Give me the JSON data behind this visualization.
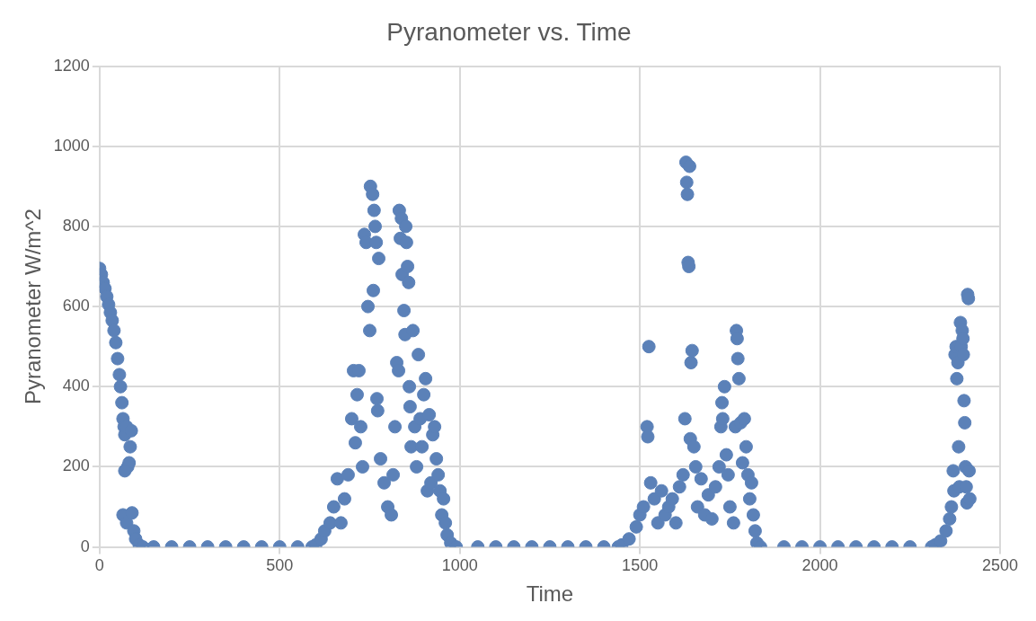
{
  "chart_data": {
    "type": "scatter",
    "title": "Pyranometer vs. Time",
    "xlabel": "Time",
    "ylabel": "Pyranometer W/m^2",
    "x": [
      0,
      5,
      10,
      15,
      20,
      25,
      30,
      35,
      40,
      45,
      50,
      55,
      58,
      62,
      65,
      68,
      70,
      75,
      78,
      82,
      85,
      88,
      70,
      65,
      75,
      90,
      95,
      100,
      110,
      120,
      150,
      200,
      250,
      300,
      350,
      400,
      450,
      500,
      550,
      590,
      600,
      615,
      625,
      640,
      650,
      660,
      670,
      680,
      690,
      700,
      705,
      710,
      715,
      720,
      725,
      730,
      735,
      740,
      745,
      750,
      752,
      758,
      760,
      762,
      765,
      768,
      770,
      772,
      775,
      780,
      790,
      800,
      810,
      815,
      820,
      825,
      830,
      832,
      835,
      838,
      840,
      845,
      848,
      850,
      852,
      855,
      858,
      860,
      862,
      865,
      870,
      875,
      880,
      885,
      890,
      895,
      900,
      905,
      910,
      915,
      920,
      925,
      930,
      935,
      940,
      945,
      950,
      955,
      960,
      965,
      975,
      990,
      1050,
      1100,
      1150,
      1200,
      1250,
      1300,
      1350,
      1400,
      1440,
      1450,
      1470,
      1490,
      1500,
      1510,
      1520,
      1522,
      1525,
      1530,
      1540,
      1550,
      1560,
      1570,
      1580,
      1590,
      1600,
      1610,
      1620,
      1625,
      1628,
      1630,
      1632,
      1634,
      1636,
      1638,
      1640,
      1642,
      1645,
      1650,
      1655,
      1660,
      1670,
      1680,
      1690,
      1700,
      1710,
      1720,
      1725,
      1728,
      1730,
      1735,
      1740,
      1745,
      1750,
      1760,
      1765,
      1768,
      1770,
      1772,
      1775,
      1780,
      1785,
      1790,
      1795,
      1800,
      1805,
      1810,
      1815,
      1820,
      1825,
      1835,
      1900,
      1950,
      2000,
      2050,
      2100,
      2150,
      2200,
      2250,
      2310,
      2320,
      2335,
      2350,
      2360,
      2365,
      2370,
      2372,
      2375,
      2378,
      2380,
      2383,
      2385,
      2387,
      2390,
      2392,
      2395,
      2397,
      2398,
      2400,
      2402,
      2404,
      2406,
      2408,
      2410,
      2412,
      2414,
      2416
    ],
    "values": [
      695,
      680,
      660,
      645,
      625,
      605,
      585,
      565,
      540,
      510,
      470,
      430,
      400,
      360,
      320,
      300,
      280,
      300,
      200,
      210,
      250,
      290,
      190,
      80,
      60,
      85,
      40,
      20,
      5,
      0,
      0,
      0,
      0,
      0,
      0,
      0,
      0,
      0,
      0,
      0,
      5,
      20,
      40,
      60,
      100,
      170,
      60,
      120,
      180,
      320,
      440,
      260,
      380,
      440,
      300,
      200,
      780,
      760,
      600,
      540,
      900,
      880,
      640,
      840,
      800,
      760,
      370,
      340,
      720,
      220,
      160,
      100,
      80,
      180,
      300,
      460,
      440,
      840,
      770,
      820,
      680,
      590,
      530,
      800,
      760,
      700,
      660,
      400,
      350,
      250,
      540,
      300,
      200,
      480,
      320,
      250,
      380,
      420,
      140,
      330,
      160,
      280,
      300,
      220,
      180,
      140,
      80,
      120,
      60,
      30,
      10,
      0,
      0,
      0,
      0,
      0,
      0,
      0,
      0,
      0,
      0,
      5,
      20,
      50,
      80,
      100,
      300,
      275,
      500,
      160,
      120,
      60,
      140,
      80,
      100,
      120,
      60,
      150,
      180,
      320,
      960,
      910,
      880,
      710,
      700,
      950,
      270,
      460,
      490,
      250,
      200,
      100,
      170,
      80,
      130,
      70,
      150,
      200,
      300,
      360,
      320,
      400,
      230,
      180,
      100,
      60,
      300,
      540,
      520,
      470,
      420,
      310,
      210,
      320,
      250,
      180,
      120,
      160,
      80,
      40,
      10,
      0,
      0,
      0,
      0,
      0,
      0,
      0,
      0,
      0,
      0,
      5,
      15,
      40,
      70,
      100,
      190,
      140,
      480,
      500,
      420,
      460,
      250,
      150,
      560,
      500,
      540,
      520,
      480,
      365,
      310,
      200,
      150,
      110,
      630,
      620,
      190,
      120
    ],
    "color": "#5b81b8",
    "marker": "circle",
    "xlim": [
      0,
      2500
    ],
    "xticks": [
      0,
      500,
      1000,
      1500,
      2000,
      2500
    ],
    "ylim": [
      0,
      1200
    ],
    "yticks": [
      0,
      200,
      400,
      600,
      800,
      1000,
      1200
    ],
    "grid": true
  }
}
